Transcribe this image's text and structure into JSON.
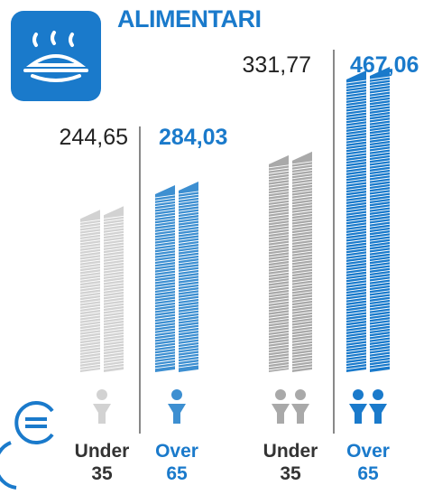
{
  "chart_data": {
    "type": "bar",
    "title": "ALIMENTARI",
    "categories": [
      "Under 35",
      "Over 65",
      "Under 35",
      "Over 65"
    ],
    "values": [
      244.65,
      284.03,
      331.77,
      467.06
    ],
    "value_labels": [
      "244,65",
      "284,03",
      "331,77",
      "467,06"
    ],
    "colors": [
      "#d2d2d2",
      "#3d8fd1",
      "#a9a9a9",
      "#1a7acb"
    ]
  }
}
